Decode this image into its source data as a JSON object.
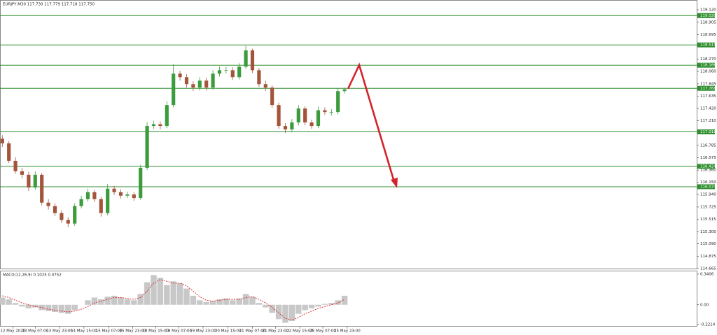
{
  "chart_data": [
    {
      "type": "candlestick",
      "title": "EURJPY,M30 117.730 117.779 117.718 117.750",
      "up_color": "#3c9b3c",
      "down_color": "#a3543a",
      "level_color": "#2f8f2f",
      "xlim": [
        -0.35,
        105.5
      ],
      "ylim": [
        114.665,
        119.252
      ],
      "yticks": [
        {
          "value": 119.12,
          "label": "119.120"
        },
        {
          "value": 118.905,
          "label": "118.905"
        },
        {
          "value": 118.695,
          "label": "118.695"
        },
        {
          "value": 118.27,
          "label": "118.270"
        },
        {
          "value": 118.06,
          "label": "118.060"
        },
        {
          "value": 117.845,
          "label": "117.845"
        },
        {
          "value": 117.635,
          "label": "117.635"
        },
        {
          "value": 117.42,
          "label": "117.420"
        },
        {
          "value": 117.21,
          "label": "117.210"
        },
        {
          "value": 116.785,
          "label": "116.785"
        },
        {
          "value": 116.575,
          "label": "116.575"
        },
        {
          "value": 116.36,
          "label": "116.360"
        },
        {
          "value": 116.15,
          "label": "116.150"
        },
        {
          "value": 115.94,
          "label": "115.940"
        },
        {
          "value": 115.725,
          "label": "115.725"
        },
        {
          "value": 115.515,
          "label": "115.515"
        },
        {
          "value": 115.3,
          "label": "115.300"
        },
        {
          "value": 115.09,
          "label": "115.090"
        },
        {
          "value": 114.875,
          "label": "114.875"
        },
        {
          "value": 114.665,
          "label": "114.665"
        }
      ],
      "levels": [
        {
          "value": 119.02,
          "label": "119.020"
        },
        {
          "value": 118.515,
          "label": "118.515"
        },
        {
          "value": 118.166,
          "label": "118.166"
        },
        {
          "value": 117.768,
          "label": "117.768"
        },
        {
          "value": 117.018,
          "label": "117.018"
        },
        {
          "value": 116.424,
          "label": "116.424"
        },
        {
          "value": 116.074,
          "label": "116.074"
        }
      ],
      "open": [
        116.9,
        116.82,
        116.52,
        116.34,
        116.28,
        116.06,
        116.28,
        115.8,
        115.74,
        115.62,
        115.5,
        115.44,
        115.74,
        115.86,
        115.98,
        115.86,
        115.62,
        116.04,
        115.98,
        115.92,
        115.94,
        115.88,
        116.4,
        117.12,
        117.15,
        117.12,
        117.48,
        118.02,
        117.96,
        117.84,
        117.78,
        117.9,
        117.78,
        118.02,
        118.08,
        118.08,
        117.96,
        118.14,
        118.42,
        118.08,
        117.84,
        117.78,
        117.48,
        117.12,
        117.06,
        117.18,
        117.42,
        117.18,
        117.12,
        117.39,
        117.36,
        117.36,
        117.72
      ],
      "high": [
        116.96,
        116.86,
        116.58,
        116.4,
        116.33,
        116.34,
        116.31,
        115.86,
        115.79,
        115.67,
        115.55,
        115.79,
        115.92,
        116.04,
        116.02,
        115.9,
        116.12,
        116.09,
        116.03,
        115.99,
        115.98,
        116.45,
        117.18,
        117.21,
        117.2,
        117.54,
        118.18,
        118.07,
        118.01,
        117.89,
        117.96,
        117.95,
        118.08,
        118.14,
        118.14,
        118.13,
        118.2,
        118.5,
        118.45,
        118.12,
        117.9,
        117.82,
        117.52,
        117.17,
        117.24,
        117.48,
        117.46,
        117.23,
        117.45,
        117.44,
        117.41,
        117.77,
        117.78
      ],
      "low": [
        116.76,
        116.48,
        116.3,
        116.22,
        116.0,
        116.02,
        115.75,
        115.68,
        115.57,
        115.45,
        115.38,
        115.4,
        115.7,
        115.82,
        115.81,
        115.56,
        115.58,
        115.93,
        115.87,
        115.88,
        115.83,
        115.85,
        116.36,
        117.07,
        117.06,
        117.08,
        117.44,
        117.9,
        117.78,
        117.72,
        117.73,
        117.73,
        117.74,
        117.97,
        118.02,
        117.91,
        117.92,
        118.1,
        118.03,
        117.79,
        117.72,
        117.43,
        117.07,
        117.0,
        117.01,
        117.13,
        117.13,
        117.07,
        117.08,
        117.31,
        117.3,
        117.32,
        117.68
      ],
      "close": [
        116.82,
        116.52,
        116.34,
        116.28,
        116.06,
        116.28,
        115.8,
        115.74,
        115.62,
        115.5,
        115.44,
        115.74,
        115.86,
        115.98,
        115.86,
        115.62,
        116.04,
        115.98,
        115.92,
        115.94,
        115.88,
        116.4,
        117.12,
        117.15,
        117.12,
        117.48,
        118.02,
        117.96,
        117.84,
        117.78,
        117.9,
        117.78,
        118.02,
        118.08,
        118.08,
        117.96,
        118.14,
        118.42,
        118.08,
        117.84,
        117.78,
        117.48,
        117.12,
        117.06,
        117.18,
        117.42,
        117.18,
        117.12,
        117.39,
        117.36,
        117.36,
        117.72,
        117.75
      ]
    },
    {
      "type": "macd",
      "title": "MACD(12,26,9) 0.1025 0.0752",
      "hist_color": "#c8c8c8",
      "signal_color": "#d8262a",
      "xlim": [
        -0.35,
        105.5
      ],
      "ylim": [
        -0.235,
        0.371
      ],
      "yticks": [
        0.3406,
        {
          "value": 0,
          "label": "0.00"
        },
        -0.2214
      ],
      "xticks": [
        {
          "value": 1.6,
          "label": "12 May 2020"
        },
        {
          "value": 5.0,
          "label": "13 May 07:00"
        },
        {
          "value": 8.7,
          "label": "13 May 23:00"
        },
        {
          "value": 12.4,
          "label": "14 May 15:00"
        },
        {
          "value": 16.2,
          "label": "15 May 07:00"
        },
        {
          "value": 19.8,
          "label": "15 May 23:00"
        },
        {
          "value": 23.3,
          "label": "18 May 15:00"
        },
        {
          "value": 26.8,
          "label": "19 May 07:00"
        },
        {
          "value": 30.5,
          "label": "19 May 23:00"
        },
        {
          "value": 34.3,
          "label": "20 May 15:00"
        },
        {
          "value": 38.0,
          "label": "21 May 07:00"
        },
        {
          "value": 41.5,
          "label": "21 May 23:00"
        },
        {
          "value": 45.2,
          "label": "22 May 15:00"
        },
        {
          "value": 48.7,
          "label": "25 May 07:00"
        },
        {
          "value": 52.4,
          "label": "25 May 23:00"
        }
      ],
      "histogram": [
        0.08,
        0.06,
        0.02,
        -0.02,
        -0.04,
        -0.03,
        -0.06,
        -0.07,
        -0.08,
        -0.09,
        -0.1,
        -0.06,
        0.0,
        0.05,
        0.08,
        0.06,
        0.09,
        0.1,
        0.08,
        0.06,
        0.05,
        0.12,
        0.25,
        0.33,
        0.3,
        0.22,
        0.26,
        0.24,
        0.18,
        0.1,
        0.05,
        0.03,
        0.04,
        0.06,
        0.07,
        0.05,
        0.07,
        0.12,
        0.09,
        0.02,
        -0.03,
        -0.09,
        -0.16,
        -0.2,
        -0.18,
        -0.1,
        -0.06,
        -0.04,
        -0.02,
        0.01,
        0.02,
        0.05,
        0.1
      ],
      "signal": [
        0.1,
        0.08,
        0.05,
        0.02,
        0.0,
        -0.02,
        -0.03,
        -0.05,
        -0.06,
        -0.07,
        -0.08,
        -0.07,
        -0.05,
        -0.02,
        0.02,
        0.04,
        0.06,
        0.08,
        0.08,
        0.07,
        0.06,
        0.08,
        0.15,
        0.24,
        0.28,
        0.26,
        0.24,
        0.24,
        0.21,
        0.15,
        0.09,
        0.05,
        0.04,
        0.05,
        0.06,
        0.06,
        0.06,
        0.08,
        0.09,
        0.06,
        0.02,
        -0.03,
        -0.09,
        -0.15,
        -0.17,
        -0.14,
        -0.1,
        -0.07,
        -0.04,
        -0.02,
        0.0,
        0.02,
        0.06
      ]
    }
  ]
}
